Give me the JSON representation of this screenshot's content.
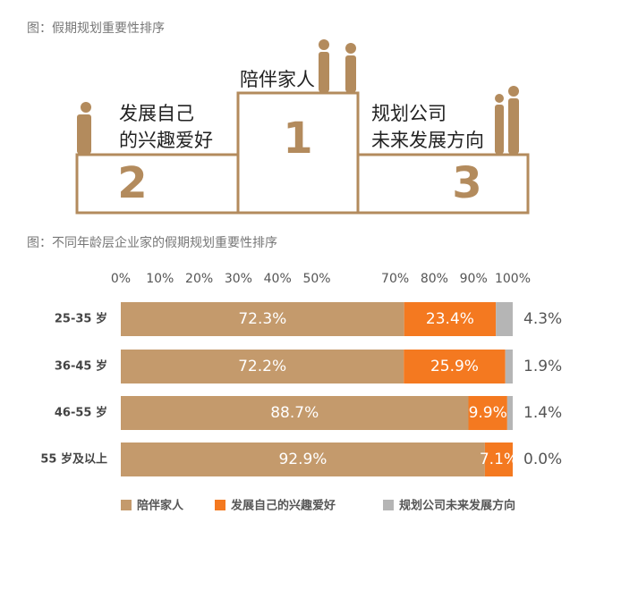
{
  "header": {
    "title": "图：假期规划重要性排序"
  },
  "podium": [
    {
      "rank": "1",
      "lines": [
        "陪伴家人"
      ]
    },
    {
      "rank": "2",
      "lines": [
        "发展自己",
        "的兴趣爱好"
      ]
    },
    {
      "rank": "3",
      "lines": [
        "规划公司",
        "未来发展方向"
      ]
    }
  ],
  "chart_data": {
    "type": "stacked-bar-horizontal",
    "title": "图：不同年龄层企业家的假期规划重要性排序",
    "categories": [
      "25-35 岁",
      "36-45 岁",
      "46-55 岁",
      "55 岁及以上"
    ],
    "series": [
      {
        "name": "陪伴家人",
        "color": "#c49a6c",
        "values": [
          72.3,
          72.2,
          88.7,
          92.9
        ],
        "value_labels": [
          "72.3%",
          "72.2%",
          "88.7%",
          "92.9%"
        ]
      },
      {
        "name": "发展自己的兴趣爱好",
        "color": "#f47920",
        "values": [
          23.4,
          25.9,
          9.9,
          7.1
        ],
        "value_labels": [
          "23.4%",
          "25.9%",
          "9.9%",
          "7.1%"
        ]
      },
      {
        "name": "规划公司未来发展方向",
        "color": "#b5b5b5",
        "values": [
          4.3,
          1.9,
          1.4,
          0.0
        ],
        "value_labels": [
          "4.3%",
          "1.9%",
          "1.4%",
          "0.0%"
        ]
      }
    ],
    "xlim": [
      0,
      100
    ],
    "xticks": [
      {
        "value": 0,
        "label": "0%"
      },
      {
        "value": 10,
        "label": "10%"
      },
      {
        "value": 20,
        "label": "20%"
      },
      {
        "value": 30,
        "label": "30%"
      },
      {
        "value": 40,
        "label": "40%"
      },
      {
        "value": 50,
        "label": "50%"
      },
      {
        "value": 70,
        "label": "70%"
      },
      {
        "value": 80,
        "label": "80%"
      },
      {
        "value": 90,
        "label": "90%"
      },
      {
        "value": 100,
        "label": "100%"
      }
    ],
    "legend": "bottom"
  }
}
